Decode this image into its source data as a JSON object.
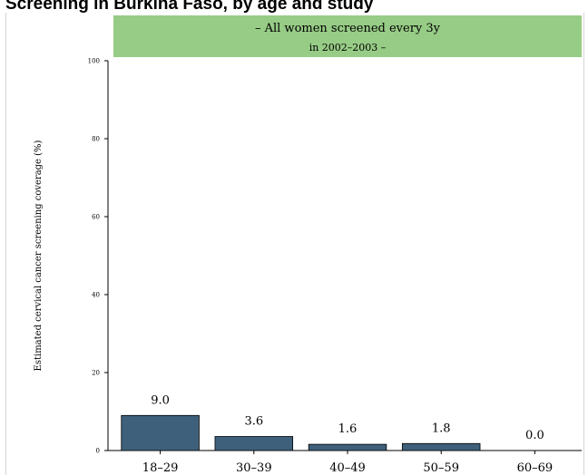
{
  "title": "Screening in Burkina Faso, by age and study",
  "chart_data": {
    "type": "bar",
    "facet_label_lines": [
      "– All women screened every 3y",
      "in 2002–2003 –"
    ],
    "categories": [
      "18–29",
      "30–39",
      "40–49",
      "50–59",
      "60–69"
    ],
    "values": [
      9.0,
      3.6,
      1.6,
      1.8,
      0.0
    ],
    "value_labels": [
      "9.0",
      "3.6",
      "1.6",
      "1.8",
      "0.0"
    ],
    "ylabel": "Estimated cervical cancer screening coverage (%)",
    "ylim": [
      0,
      100
    ],
    "yticks": [
      0,
      20,
      40,
      60,
      80,
      100
    ],
    "grid": false,
    "bar_color": "#3e607b",
    "strip_color": "#97cc86"
  }
}
